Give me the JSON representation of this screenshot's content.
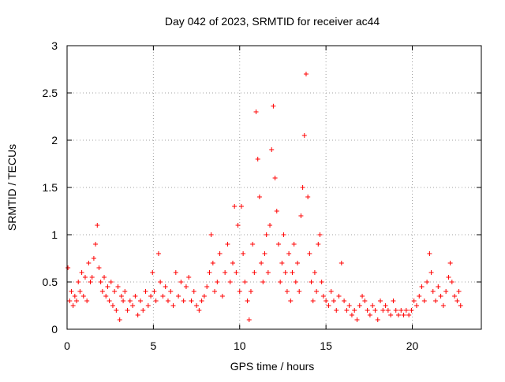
{
  "chart_data": {
    "type": "scatter",
    "title": "Day 042 of 2023, SRMTID for receiver ac44",
    "xlabel": "GPS time / hours",
    "ylabel": "SRMTID / TECUs",
    "xlim": [
      0,
      24
    ],
    "ylim": [
      0,
      3
    ],
    "x_ticks": [
      0,
      5,
      10,
      15,
      20
    ],
    "y_ticks": [
      0,
      0.5,
      1,
      1.5,
      2,
      2.5,
      3
    ],
    "x_tick_labels": [
      "0",
      "5",
      "10",
      "15",
      "20"
    ],
    "y_tick_labels": [
      "0",
      "0.5",
      "1",
      "1.5",
      "2",
      "2.5",
      "3"
    ],
    "grid": true,
    "marker": "plus",
    "color": "#ff0000",
    "series": [
      {
        "name": "SRMTID",
        "points": [
          [
            0.05,
            0.65
          ],
          [
            0.15,
            0.3
          ],
          [
            0.25,
            0.4
          ],
          [
            0.35,
            0.25
          ],
          [
            0.45,
            0.35
          ],
          [
            0.55,
            0.3
          ],
          [
            0.65,
            0.5
          ],
          [
            0.75,
            0.4
          ],
          [
            0.85,
            0.6
          ],
          [
            0.95,
            0.35
          ],
          [
            1.05,
            0.55
          ],
          [
            1.15,
            0.3
          ],
          [
            1.25,
            0.7
          ],
          [
            1.35,
            0.5
          ],
          [
            1.45,
            0.55
          ],
          [
            1.55,
            0.75
          ],
          [
            1.65,
            0.9
          ],
          [
            1.75,
            1.1
          ],
          [
            1.85,
            0.65
          ],
          [
            1.95,
            0.5
          ],
          [
            2.05,
            0.4
          ],
          [
            2.15,
            0.55
          ],
          [
            2.25,
            0.35
          ],
          [
            2.35,
            0.45
          ],
          [
            2.45,
            0.3
          ],
          [
            2.55,
            0.5
          ],
          [
            2.65,
            0.25
          ],
          [
            2.75,
            0.4
          ],
          [
            2.85,
            0.2
          ],
          [
            2.95,
            0.45
          ],
          [
            3.05,
            0.1
          ],
          [
            3.15,
            0.35
          ],
          [
            3.25,
            0.3
          ],
          [
            3.35,
            0.4
          ],
          [
            3.5,
            0.2
          ],
          [
            3.65,
            0.3
          ],
          [
            3.8,
            0.25
          ],
          [
            3.95,
            0.35
          ],
          [
            4.1,
            0.15
          ],
          [
            4.25,
            0.3
          ],
          [
            4.4,
            0.2
          ],
          [
            4.55,
            0.4
          ],
          [
            4.7,
            0.25
          ],
          [
            4.85,
            0.35
          ],
          [
            4.95,
            0.6
          ],
          [
            5.05,
            0.4
          ],
          [
            5.15,
            0.3
          ],
          [
            5.3,
            0.8
          ],
          [
            5.4,
            0.5
          ],
          [
            5.55,
            0.35
          ],
          [
            5.7,
            0.45
          ],
          [
            5.85,
            0.3
          ],
          [
            6.0,
            0.4
          ],
          [
            6.15,
            0.25
          ],
          [
            6.3,
            0.6
          ],
          [
            6.45,
            0.35
          ],
          [
            6.6,
            0.5
          ],
          [
            6.75,
            0.3
          ],
          [
            6.9,
            0.45
          ],
          [
            7.05,
            0.55
          ],
          [
            7.2,
            0.3
          ],
          [
            7.35,
            0.4
          ],
          [
            7.5,
            0.25
          ],
          [
            7.65,
            0.2
          ],
          [
            7.8,
            0.3
          ],
          [
            7.95,
            0.35
          ],
          [
            8.1,
            0.45
          ],
          [
            8.25,
            0.6
          ],
          [
            8.35,
            1.0
          ],
          [
            8.45,
            0.7
          ],
          [
            8.55,
            0.4
          ],
          [
            8.7,
            0.5
          ],
          [
            8.85,
            0.8
          ],
          [
            9.0,
            0.35
          ],
          [
            9.15,
            0.6
          ],
          [
            9.3,
            0.9
          ],
          [
            9.45,
            0.5
          ],
          [
            9.6,
            0.7
          ],
          [
            9.7,
            1.3
          ],
          [
            9.8,
            0.6
          ],
          [
            9.9,
            1.1
          ],
          [
            10.0,
            0.4
          ],
          [
            10.1,
            1.3
          ],
          [
            10.2,
            0.8
          ],
          [
            10.3,
            0.5
          ],
          [
            10.45,
            0.3
          ],
          [
            10.55,
            0.1
          ],
          [
            10.65,
            0.4
          ],
          [
            10.75,
            0.9
          ],
          [
            10.85,
            0.6
          ],
          [
            10.95,
            2.3
          ],
          [
            11.05,
            1.8
          ],
          [
            11.15,
            1.4
          ],
          [
            11.25,
            0.7
          ],
          [
            11.35,
            0.5
          ],
          [
            11.45,
            0.8
          ],
          [
            11.55,
            1.0
          ],
          [
            11.65,
            0.6
          ],
          [
            11.75,
            1.1
          ],
          [
            11.85,
            1.9
          ],
          [
            11.95,
            2.36
          ],
          [
            12.05,
            1.6
          ],
          [
            12.15,
            1.25
          ],
          [
            12.25,
            0.9
          ],
          [
            12.35,
            0.5
          ],
          [
            12.45,
            0.7
          ],
          [
            12.55,
            1.0
          ],
          [
            12.65,
            0.6
          ],
          [
            12.75,
            0.4
          ],
          [
            12.85,
            0.8
          ],
          [
            12.95,
            0.3
          ],
          [
            13.05,
            0.6
          ],
          [
            13.15,
            0.9
          ],
          [
            13.25,
            0.5
          ],
          [
            13.35,
            0.7
          ],
          [
            13.45,
            0.4
          ],
          [
            13.55,
            1.2
          ],
          [
            13.65,
            1.5
          ],
          [
            13.75,
            2.05
          ],
          [
            13.85,
            2.7
          ],
          [
            13.95,
            1.4
          ],
          [
            14.05,
            0.8
          ],
          [
            14.15,
            0.5
          ],
          [
            14.25,
            0.3
          ],
          [
            14.35,
            0.6
          ],
          [
            14.45,
            0.4
          ],
          [
            14.55,
            0.9
          ],
          [
            14.65,
            1.0
          ],
          [
            14.75,
            0.5
          ],
          [
            14.85,
            0.35
          ],
          [
            15.0,
            0.3
          ],
          [
            15.15,
            0.25
          ],
          [
            15.3,
            0.4
          ],
          [
            15.45,
            0.3
          ],
          [
            15.6,
            0.2
          ],
          [
            15.75,
            0.35
          ],
          [
            15.9,
            0.7
          ],
          [
            16.05,
            0.3
          ],
          [
            16.2,
            0.2
          ],
          [
            16.35,
            0.25
          ],
          [
            16.5,
            0.15
          ],
          [
            16.65,
            0.2
          ],
          [
            16.8,
            0.1
          ],
          [
            16.95,
            0.25
          ],
          [
            17.1,
            0.35
          ],
          [
            17.25,
            0.3
          ],
          [
            17.4,
            0.2
          ],
          [
            17.55,
            0.15
          ],
          [
            17.7,
            0.25
          ],
          [
            17.85,
            0.2
          ],
          [
            18.0,
            0.1
          ],
          [
            18.15,
            0.3
          ],
          [
            18.3,
            0.2
          ],
          [
            18.45,
            0.25
          ],
          [
            18.6,
            0.2
          ],
          [
            18.75,
            0.15
          ],
          [
            18.9,
            0.3
          ],
          [
            19.05,
            0.2
          ],
          [
            19.2,
            0.15
          ],
          [
            19.35,
            0.2
          ],
          [
            19.5,
            0.15
          ],
          [
            19.65,
            0.2
          ],
          [
            19.8,
            0.15
          ],
          [
            19.95,
            0.2
          ],
          [
            20.1,
            0.3
          ],
          [
            20.25,
            0.25
          ],
          [
            20.4,
            0.35
          ],
          [
            20.55,
            0.45
          ],
          [
            20.7,
            0.3
          ],
          [
            20.85,
            0.5
          ],
          [
            21.0,
            0.8
          ],
          [
            21.1,
            0.6
          ],
          [
            21.2,
            0.4
          ],
          [
            21.35,
            0.3
          ],
          [
            21.5,
            0.45
          ],
          [
            21.65,
            0.35
          ],
          [
            21.8,
            0.25
          ],
          [
            21.95,
            0.4
          ],
          [
            22.1,
            0.55
          ],
          [
            22.2,
            0.7
          ],
          [
            22.3,
            0.5
          ],
          [
            22.45,
            0.35
          ],
          [
            22.6,
            0.3
          ],
          [
            22.7,
            0.4
          ],
          [
            22.8,
            0.25
          ]
        ]
      }
    ]
  }
}
